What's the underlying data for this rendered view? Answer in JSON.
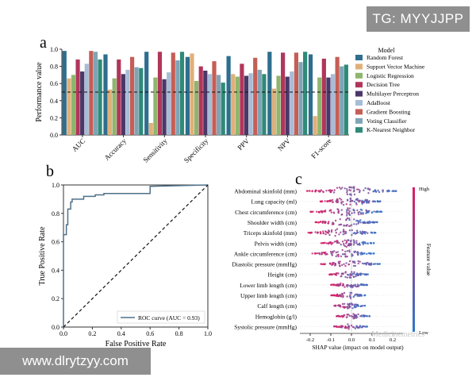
{
  "watermarks": {
    "top": "TG: MYYJJPP",
    "bottom": "www.dlrytzyy.com",
    "overlay": "Medicinemetrics"
  },
  "panels": {
    "a": "a",
    "b": "b",
    "c": "c"
  },
  "chart_data": [
    {
      "type": "bar",
      "panel": "a",
      "ylabel": "Performance value",
      "ylim": [
        0,
        1.0
      ],
      "yticks": [
        0.0,
        0.2,
        0.4,
        0.6,
        0.8,
        1.0
      ],
      "reference_line": 0.5,
      "categories": [
        "AUC",
        "Accuracy",
        "Sensitivity",
        "Specificity",
        "PPV",
        "NPV",
        "F1-score"
      ],
      "legend_title": "Model",
      "series": [
        {
          "name": "Random Forest",
          "color": "#2e6e8e",
          "values": [
            0.98,
            0.94,
            0.97,
            0.91,
            0.92,
            0.97,
            0.94
          ]
        },
        {
          "name": "Support Vector Machine",
          "color": "#e0b07a",
          "values": [
            0.66,
            0.53,
            0.14,
            0.95,
            0.71,
            0.54,
            0.22
          ]
        },
        {
          "name": "Logistic Regression",
          "color": "#8fb56e",
          "values": [
            0.7,
            0.66,
            0.67,
            0.63,
            0.68,
            0.69,
            0.67
          ]
        },
        {
          "name": "Decision Tree",
          "color": "#b1365a",
          "values": [
            0.88,
            0.88,
            0.97,
            0.8,
            0.83,
            0.96,
            0.89
          ]
        },
        {
          "name": "Multilayer Perceptron",
          "color": "#4a3868",
          "values": [
            0.74,
            0.71,
            0.65,
            0.75,
            0.69,
            0.68,
            0.67
          ]
        },
        {
          "name": "AdaBoost",
          "color": "#a7bcd7",
          "values": [
            0.83,
            0.76,
            0.73,
            0.71,
            0.72,
            0.74,
            0.71
          ]
        },
        {
          "name": "Gradient Boosting",
          "color": "#c55e55",
          "values": [
            0.98,
            0.91,
            0.96,
            0.86,
            0.9,
            0.96,
            0.91
          ]
        },
        {
          "name": "Voting Classifier",
          "color": "#7fa4b6",
          "values": [
            0.97,
            0.79,
            0.87,
            0.7,
            0.76,
            0.85,
            0.8
          ]
        },
        {
          "name": "K-Nearest Neighbor",
          "color": "#2f8a78",
          "values": [
            0.88,
            0.78,
            0.97,
            0.61,
            0.71,
            0.97,
            0.82
          ]
        }
      ]
    },
    {
      "type": "line",
      "panel": "b",
      "xlabel": "False Positive Rate",
      "ylabel": "True Positive Rate",
      "xlim": [
        0,
        1.0
      ],
      "ylim": [
        0,
        1.0
      ],
      "xticks": [
        0.0,
        0.2,
        0.4,
        0.6,
        0.8,
        1.0
      ],
      "yticks": [
        0.0,
        0.2,
        0.4,
        0.6,
        0.8,
        1.0
      ],
      "series": [
        {
          "name": "ROC curve (AUC = 0.93)",
          "color": "#4e7089",
          "x": [
            0,
            0,
            0.02,
            0.02,
            0.03,
            0.03,
            0.05,
            0.05,
            0.06,
            0.06,
            0.1,
            0.1,
            0.14,
            0.14,
            0.22,
            0.22,
            0.28,
            0.28,
            0.38,
            0.38,
            0.6,
            0.6,
            1.0
          ],
          "y": [
            0,
            0.65,
            0.65,
            0.72,
            0.72,
            0.83,
            0.83,
            0.88,
            0.88,
            0.9,
            0.9,
            0.9,
            0.9,
            0.92,
            0.92,
            0.93,
            0.93,
            0.94,
            0.94,
            0.94,
            0.94,
            0.99,
            1.0
          ]
        },
        {
          "name": "chance",
          "color": "#111111",
          "dashed": true,
          "x": [
            0,
            1
          ],
          "y": [
            0,
            1
          ]
        }
      ]
    },
    {
      "type": "scatter",
      "panel": "c",
      "xlabel": "SHAP value (impact on model output)",
      "xlim": [
        -0.25,
        0.25
      ],
      "xticks": [
        -0.2,
        -0.1,
        0.0,
        0.1,
        0.2
      ],
      "colorbar": {
        "label": "Feature value",
        "high": "High",
        "low": "Low"
      },
      "features": [
        {
          "name": "Abdominal skinfold (mm)",
          "min": -0.22,
          "max": 0.22
        },
        {
          "name": "Lung capacity (ml)",
          "min": -0.15,
          "max": 0.14
        },
        {
          "name": "Chest circumference (cm)",
          "min": -0.2,
          "max": 0.15
        },
        {
          "name": "Shoulder width (cm)",
          "min": -0.18,
          "max": 0.13
        },
        {
          "name": "Triceps skinfold (mm)",
          "min": -0.21,
          "max": 0.12
        },
        {
          "name": "Pelvis width (cm)",
          "min": -0.15,
          "max": 0.11
        },
        {
          "name": "Ankle circumference (cm)",
          "min": -0.19,
          "max": 0.11
        },
        {
          "name": "Diastolic pressure (mmHg)",
          "min": -0.15,
          "max": 0.14
        },
        {
          "name": "Height (cm)",
          "min": -0.11,
          "max": 0.08
        },
        {
          "name": "Lower limb length (cm)",
          "min": -0.1,
          "max": 0.08
        },
        {
          "name": "Upper limb length (cm)",
          "min": -0.1,
          "max": 0.07
        },
        {
          "name": "Calf length (cm)",
          "min": -0.09,
          "max": 0.07
        },
        {
          "name": "Hemoglobin (g/l)",
          "min": -0.08,
          "max": 0.09
        },
        {
          "name": "Systolic pressure (mmHg)",
          "min": -0.09,
          "max": 0.08
        }
      ]
    }
  ]
}
